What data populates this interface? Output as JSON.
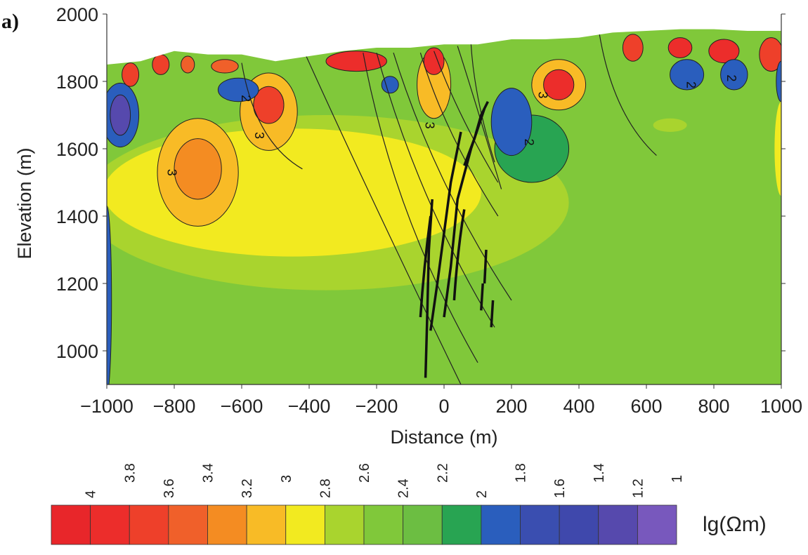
{
  "chart_data": {
    "type": "heatmap",
    "subtype": "resistivity-contour-section",
    "panel_label": "a)",
    "xlabel": "Distance (m)",
    "ylabel": "Elevation (m)",
    "xlim": [
      -1000,
      1000
    ],
    "ylim": [
      900,
      2000
    ],
    "xticks": [
      "−1000",
      "−800",
      "−600",
      "−400",
      "−200",
      "0",
      "200",
      "400",
      "600",
      "800",
      "1000"
    ],
    "xtick_values": [
      -1000,
      -800,
      -600,
      -400,
      -200,
      0,
      200,
      400,
      600,
      800,
      1000
    ],
    "yticks": [
      "1000",
      "1200",
      "1400",
      "1600",
      "1800",
      "2000"
    ],
    "ytick_values": [
      1000,
      1200,
      1400,
      1600,
      1800,
      2000
    ],
    "background_value": 2.4,
    "topography": [
      [
        -1000,
        1850
      ],
      [
        -900,
        1860
      ],
      [
        -800,
        1890
      ],
      [
        -700,
        1880
      ],
      [
        -600,
        1880
      ],
      [
        -500,
        1860
      ],
      [
        -400,
        1875
      ],
      [
        -300,
        1890
      ],
      [
        -200,
        1900
      ],
      [
        -100,
        1900
      ],
      [
        0,
        1910
      ],
      [
        100,
        1910
      ],
      [
        200,
        1925
      ],
      [
        300,
        1925
      ],
      [
        400,
        1930
      ],
      [
        500,
        1945
      ],
      [
        600,
        1950
      ],
      [
        700,
        1955
      ],
      [
        800,
        1955
      ],
      [
        900,
        1950
      ],
      [
        1000,
        1950
      ]
    ],
    "anomalies": [
      {
        "x": -350,
        "elev": 1440,
        "rx": 720,
        "ry": 260,
        "value": 2.6
      },
      {
        "x": -450,
        "elev": 1470,
        "rx": 560,
        "ry": 190,
        "value": 2.8
      },
      {
        "x": -730,
        "elev": 1530,
        "rx": 120,
        "ry": 160,
        "value": 3.0
      },
      {
        "x": -730,
        "elev": 1540,
        "rx": 70,
        "ry": 90,
        "value": 3.2
      },
      {
        "x": 1000,
        "elev": 1600,
        "rx": 20,
        "ry": 140,
        "value": 2.8
      },
      {
        "x": -1000,
        "elev": 1150,
        "rx": 14,
        "ry": 280,
        "value": 1.8
      },
      {
        "x": -960,
        "elev": 1700,
        "rx": 55,
        "ry": 95,
        "value": 1.8
      },
      {
        "x": -960,
        "elev": 1700,
        "rx": 30,
        "ry": 60,
        "value": 1.2
      },
      {
        "x": -520,
        "elev": 1710,
        "rx": 85,
        "ry": 115,
        "value": 3.0
      },
      {
        "x": -520,
        "elev": 1730,
        "rx": 45,
        "ry": 55,
        "value": 3.6
      },
      {
        "x": -610,
        "elev": 1775,
        "rx": 60,
        "ry": 35,
        "value": 1.8
      },
      {
        "x": -160,
        "elev": 1790,
        "rx": 25,
        "ry": 25,
        "value": 1.8
      },
      {
        "x": 260,
        "elev": 1600,
        "rx": 110,
        "ry": 100,
        "value": 2.0
      },
      {
        "x": 200,
        "elev": 1680,
        "rx": 60,
        "ry": 100,
        "value": 1.8
      },
      {
        "x": 340,
        "elev": 1790,
        "rx": 80,
        "ry": 75,
        "value": 3.0
      },
      {
        "x": 340,
        "elev": 1790,
        "rx": 45,
        "ry": 45,
        "value": 3.8
      },
      {
        "x": -30,
        "elev": 1790,
        "rx": 50,
        "ry": 100,
        "value": 3.0
      },
      {
        "x": -930,
        "elev": 1820,
        "rx": 25,
        "ry": 35,
        "value": 3.6
      },
      {
        "x": -840,
        "elev": 1850,
        "rx": 25,
        "ry": 30,
        "value": 3.6
      },
      {
        "x": -760,
        "elev": 1850,
        "rx": 20,
        "ry": 25,
        "value": 3.4
      },
      {
        "x": -650,
        "elev": 1845,
        "rx": 40,
        "ry": 20,
        "value": 3.4
      },
      {
        "x": -260,
        "elev": 1860,
        "rx": 90,
        "ry": 30,
        "value": 3.8
      },
      {
        "x": -30,
        "elev": 1860,
        "rx": 30,
        "ry": 40,
        "value": 3.8
      },
      {
        "x": 560,
        "elev": 1900,
        "rx": 30,
        "ry": 40,
        "value": 3.6
      },
      {
        "x": 700,
        "elev": 1900,
        "rx": 35,
        "ry": 30,
        "value": 3.8
      },
      {
        "x": 830,
        "elev": 1890,
        "rx": 45,
        "ry": 35,
        "value": 3.8
      },
      {
        "x": 970,
        "elev": 1880,
        "rx": 35,
        "ry": 50,
        "value": 3.6
      },
      {
        "x": 720,
        "elev": 1820,
        "rx": 50,
        "ry": 45,
        "value": 1.8
      },
      {
        "x": 860,
        "elev": 1820,
        "rx": 40,
        "ry": 45,
        "value": 1.8
      },
      {
        "x": 1000,
        "elev": 1800,
        "rx": 15,
        "ry": 60,
        "value": 1.8
      },
      {
        "x": 670,
        "elev": 1670,
        "rx": 50,
        "ry": 20,
        "value": 2.6
      }
    ],
    "boreholes": [
      [
        [
          -420,
          1900
        ],
        [
          -240,
          1500
        ],
        [
          50,
          900
        ]
      ],
      [
        [
          -240,
          1885
        ],
        [
          -150,
          1400
        ],
        [
          100,
          965
        ]
      ],
      [
        [
          -200,
          1885
        ],
        [
          -80,
          1450
        ],
        [
          150,
          1070
        ]
      ],
      [
        [
          -150,
          1885
        ],
        [
          -30,
          1500
        ],
        [
          200,
          1150
        ]
      ],
      [
        [
          -70,
          1885
        ],
        [
          0,
          1650
        ],
        [
          160,
          1400
        ]
      ],
      [
        [
          -30,
          1890
        ],
        [
          40,
          1700
        ],
        [
          160,
          1500
        ]
      ],
      [
        [
          40,
          1905
        ],
        [
          90,
          1750
        ],
        [
          170,
          1480
        ]
      ],
      [
        [
          -600,
          1855
        ],
        [
          -560,
          1620
        ],
        [
          -420,
          1540
        ]
      ],
      [
        [
          460,
          1945
        ],
        [
          500,
          1700
        ],
        [
          630,
          1580
        ]
      ],
      [
        [
          80,
          1910
        ],
        [
          90,
          1750
        ],
        [
          150,
          1560
        ]
      ]
    ],
    "orebodies": [
      [
        [
          -55,
          920
        ],
        [
          -50,
          1100
        ],
        [
          -45,
          1300
        ],
        [
          -35,
          1450
        ]
      ],
      [
        [
          -70,
          1100
        ],
        [
          -60,
          1250
        ],
        [
          -40,
          1400
        ]
      ],
      [
        [
          -40,
          1060
        ],
        [
          -20,
          1200
        ],
        [
          0,
          1350
        ],
        [
          20,
          1500
        ],
        [
          50,
          1650
        ]
      ],
      [
        [
          0,
          1100
        ],
        [
          20,
          1250
        ],
        [
          40,
          1450
        ],
        [
          80,
          1600
        ],
        [
          120,
          1720
        ]
      ],
      [
        [
          60,
          1550
        ],
        [
          90,
          1630
        ],
        [
          110,
          1700
        ],
        [
          130,
          1740
        ]
      ],
      [
        [
          30,
          1150
        ],
        [
          40,
          1300
        ],
        [
          60,
          1420
        ]
      ],
      [
        [
          120,
          1200
        ],
        [
          125,
          1300
        ]
      ],
      [
        [
          140,
          1070
        ],
        [
          145,
          1150
        ]
      ],
      [
        [
          110,
          1120
        ],
        [
          115,
          1200
        ]
      ]
    ],
    "contour_labels": [
      {
        "text": "3",
        "x": -820,
        "elev": 1540
      },
      {
        "text": "3",
        "x": -560,
        "elev": 1650
      },
      {
        "text": "2",
        "x": -600,
        "elev": 1760
      },
      {
        "text": "3",
        "x": -55,
        "elev": 1680
      },
      {
        "text": "2",
        "x": 240,
        "elev": 1630
      },
      {
        "text": "3",
        "x": 280,
        "elev": 1770
      },
      {
        "text": "2",
        "x": 720,
        "elev": 1800
      },
      {
        "text": "2",
        "x": 840,
        "elev": 1820
      }
    ],
    "colorbar": {
      "unit": "lg(Ωm)",
      "labels": [
        "4",
        "3.8",
        "3.6",
        "3.4",
        "3.2",
        "3",
        "2.8",
        "2.6",
        "2.4",
        "2.2",
        "2",
        "1.8",
        "1.6",
        "1.4",
        "1.2",
        "1"
      ],
      "colors": [
        "#e8262a",
        "#ec2d2b",
        "#ee402a",
        "#f0602a",
        "#f48c22",
        "#f8bb26",
        "#f2ea20",
        "#a9d42e",
        "#80c83a",
        "#6cbe42",
        "#28a452",
        "#2a5ebd",
        "#3a4eb0",
        "#3f48ac",
        "#5649ad",
        "#7858bd"
      ]
    }
  }
}
